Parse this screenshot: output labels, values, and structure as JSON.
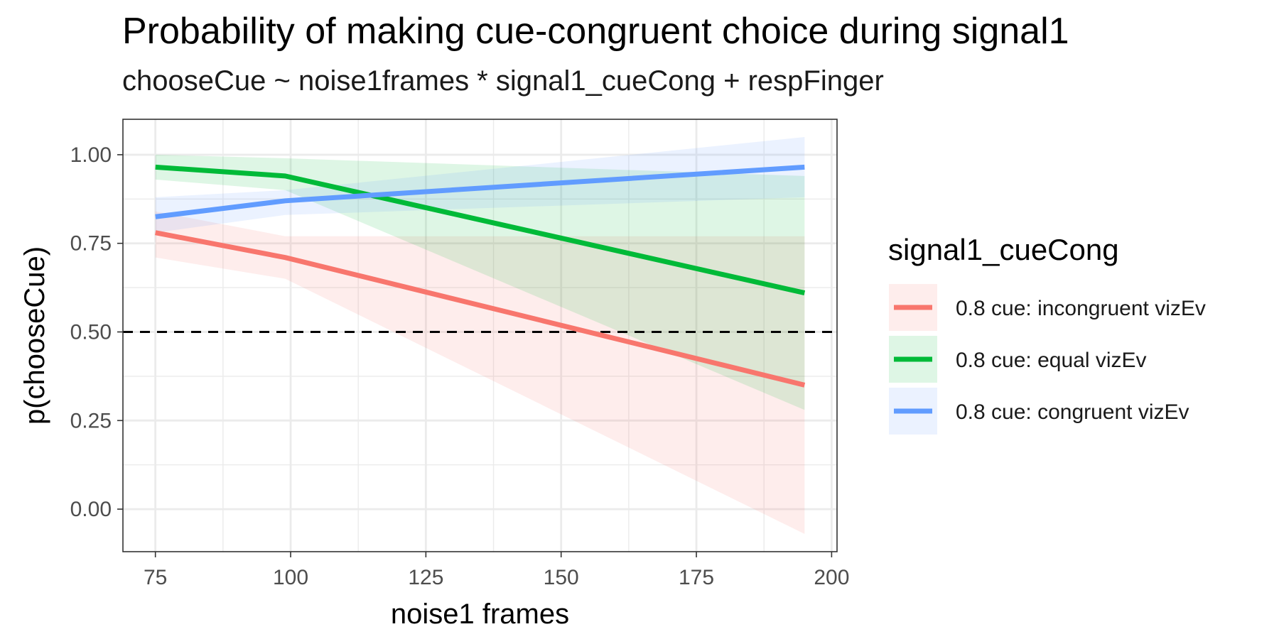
{
  "chart_data": {
    "type": "line",
    "title": "Probability of making cue-congruent choice during signal1",
    "subtitle": "chooseCue ~ noise1frames * signal1_cueCong + respFinger",
    "xlabel": "noise1 frames",
    "ylabel": "p(chooseCue)",
    "xlim": [
      69,
      201
    ],
    "ylim": [
      -0.12,
      1.1
    ],
    "xticks": [
      75,
      100,
      125,
      150,
      175,
      200
    ],
    "xtick_labels": [
      "75",
      "100",
      "125",
      "150",
      "175",
      "200"
    ],
    "yticks": [
      0,
      0.25,
      0.5,
      0.75,
      1.0
    ],
    "ytick_labels": [
      "0.00",
      "0.25",
      "0.50",
      "0.75",
      "1.00"
    ],
    "grid": true,
    "reference_line": {
      "y": 0.5,
      "style": "dashed",
      "color": "#000000"
    },
    "legend": {
      "title": "signal1_cueCong",
      "placement": "right"
    },
    "series": [
      {
        "name": "0.8 cue: incongruent vizEv",
        "color": "#F8766D",
        "x": [
          75,
          99,
          195
        ],
        "y": [
          0.78,
          0.71,
          0.35
        ],
        "ci_x": [
          75,
          99,
          195
        ],
        "ci_lower": [
          0.71,
          0.65,
          -0.07
        ],
        "ci_upper": [
          0.84,
          0.77,
          0.77
        ]
      },
      {
        "name": "0.8 cue: equal vizEv",
        "color": "#00BA38",
        "x": [
          75,
          99,
          195
        ],
        "y": [
          0.965,
          0.94,
          0.61
        ],
        "ci_x": [
          75,
          99,
          195
        ],
        "ci_lower": [
          0.93,
          0.9,
          0.28
        ],
        "ci_upper": [
          1.0,
          0.99,
          0.94
        ]
      },
      {
        "name": "0.8 cue: congruent vizEv",
        "color": "#619CFF",
        "x": [
          75,
          99,
          195
        ],
        "y": [
          0.825,
          0.87,
          0.965
        ],
        "ci_x": [
          75,
          99,
          195
        ],
        "ci_lower": [
          0.78,
          0.83,
          0.88
        ],
        "ci_upper": [
          0.88,
          0.9,
          1.05
        ]
      }
    ]
  }
}
